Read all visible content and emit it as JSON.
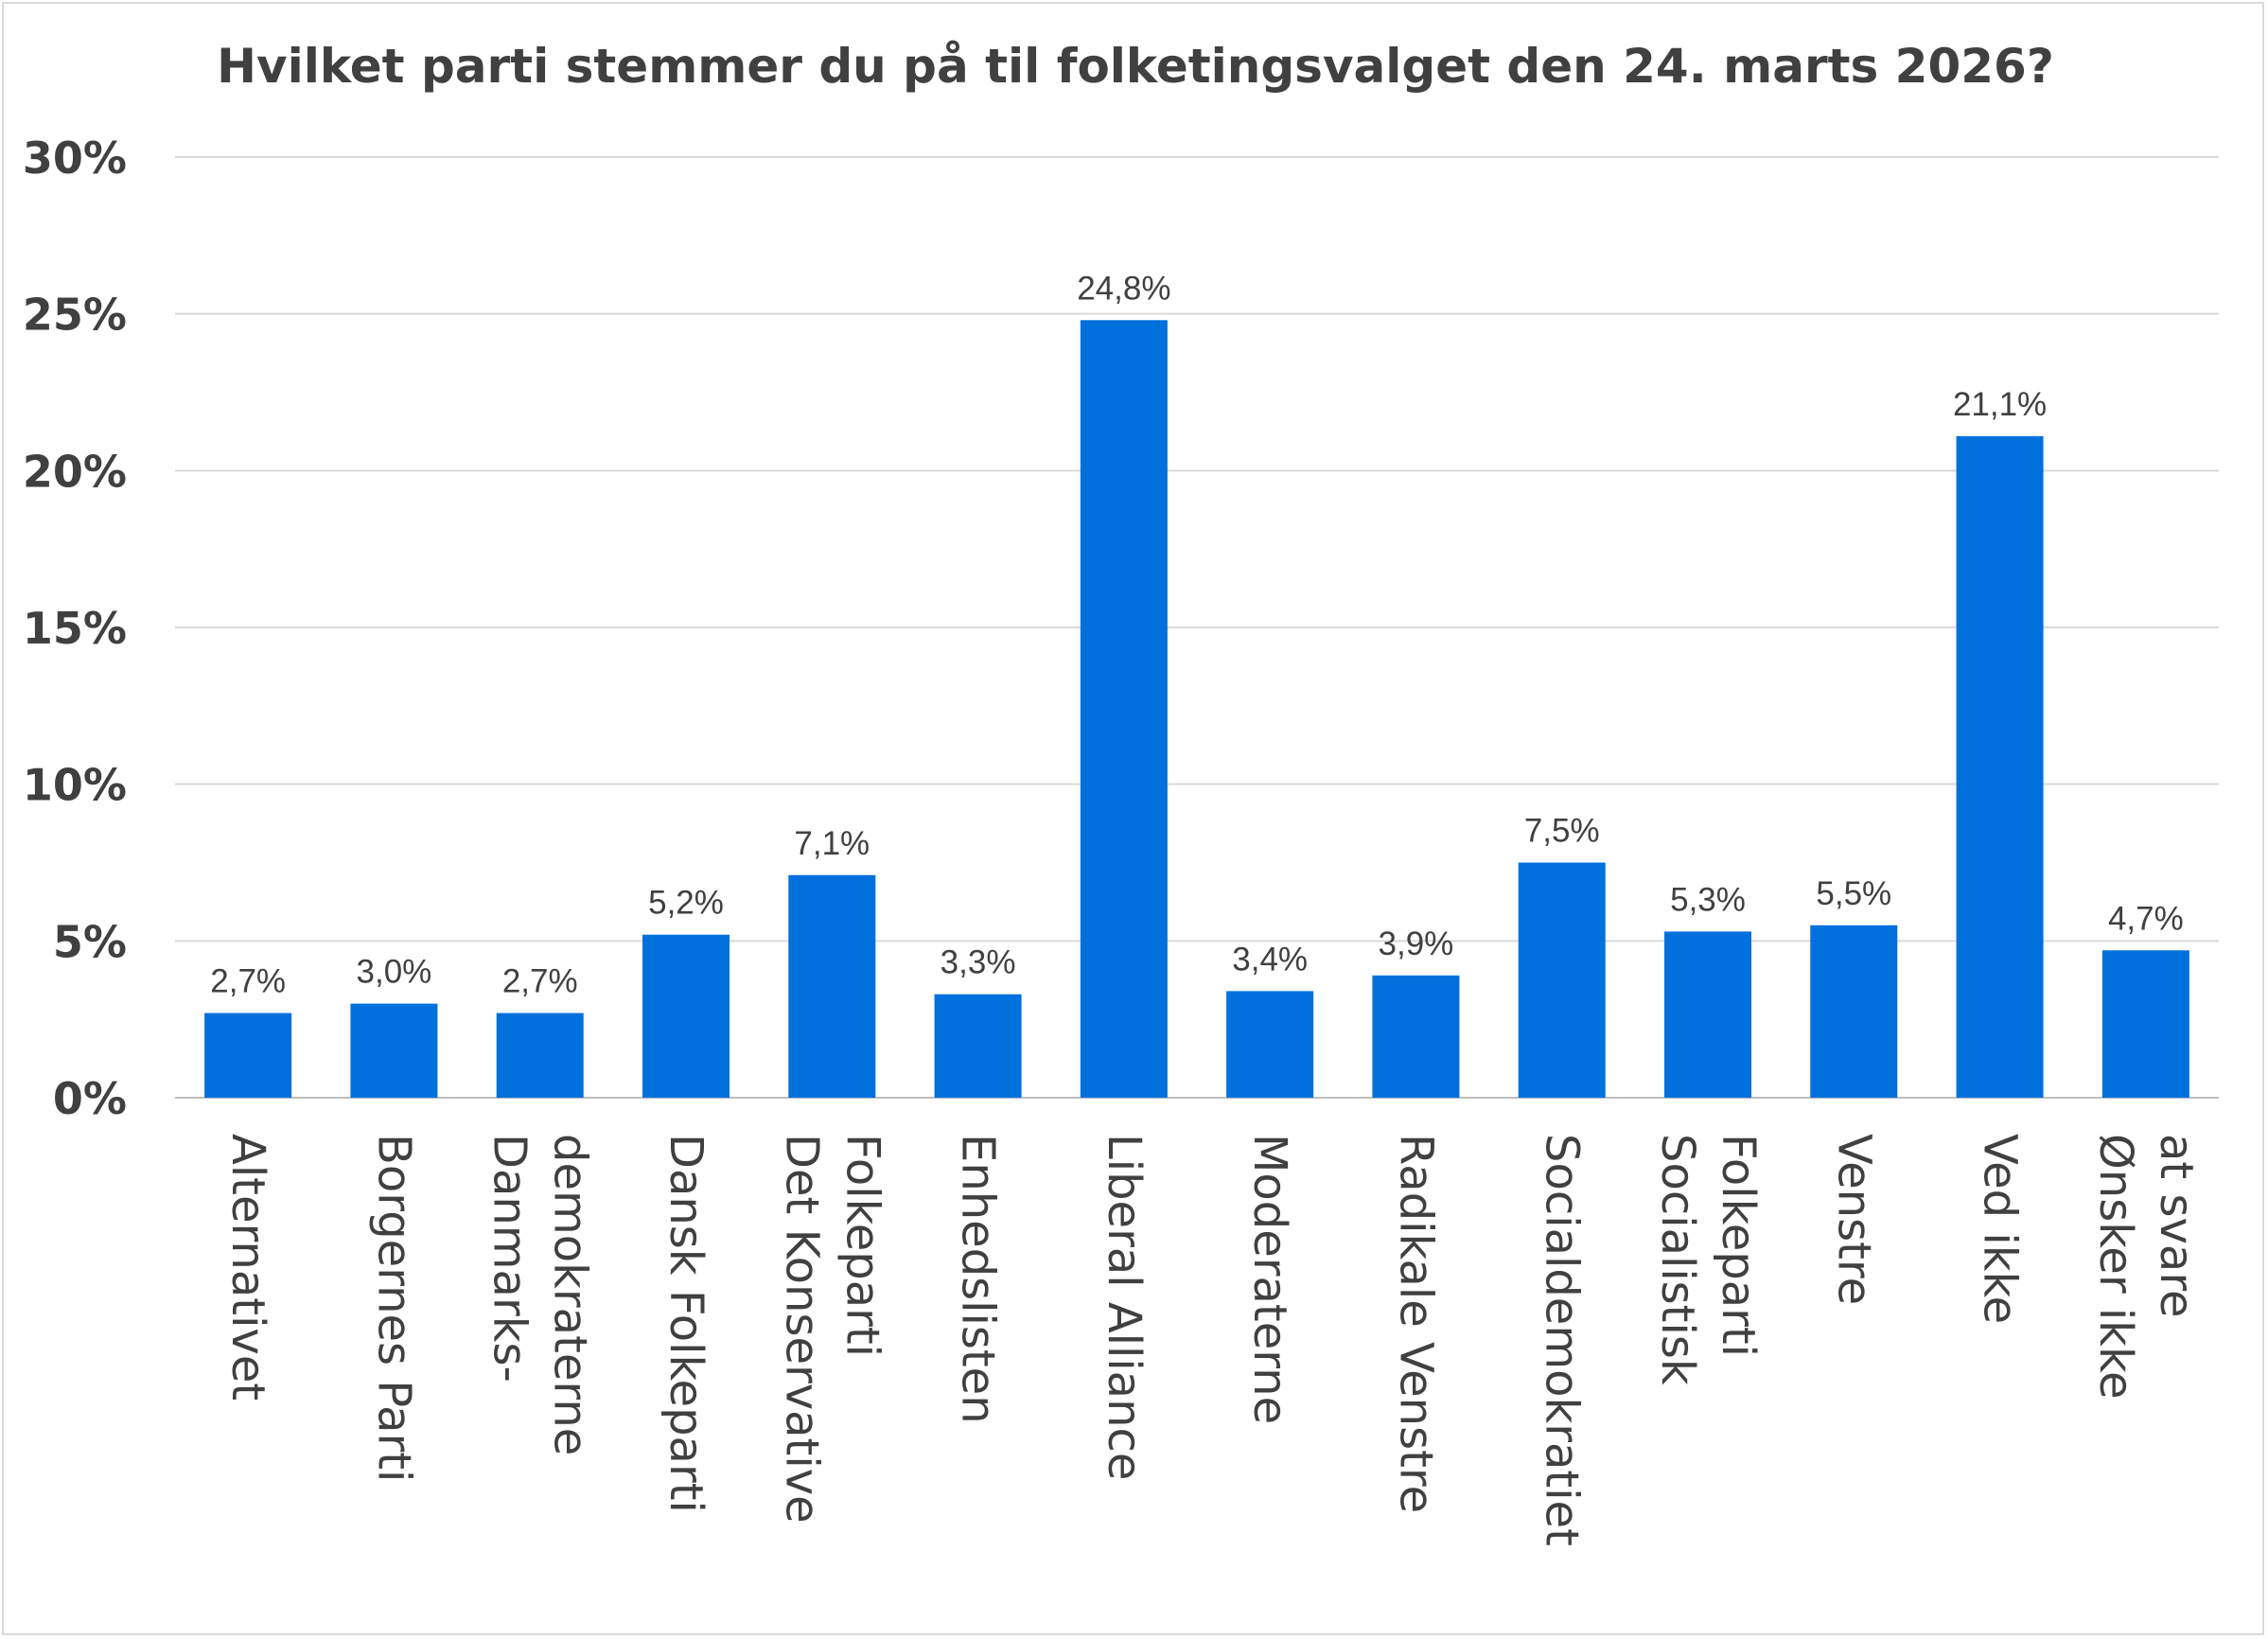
{
  "chart_data": {
    "type": "bar",
    "title": "Hvilket parti stemmer du på til folketingsvalget den 24. marts 2026?",
    "xlabel": "",
    "ylabel": "",
    "ylim": [
      0,
      30
    ],
    "yticks": [
      "0%",
      "5%",
      "10%",
      "15%",
      "20%",
      "25%",
      "30%"
    ],
    "grid": true,
    "bar_color": "#0070DD",
    "categories": [
      [
        "Alternativet"
      ],
      [
        "Borgernes Parti"
      ],
      [
        "Danmarks-",
        "demokraterne"
      ],
      [
        "Dansk Folkeparti"
      ],
      [
        "Det Konservative",
        "Folkeparti"
      ],
      [
        "Enhedslisten"
      ],
      [
        "Liberal Alliance"
      ],
      [
        "Moderaterne"
      ],
      [
        "Radikale Venstre"
      ],
      [
        "Socialdemokratiet"
      ],
      [
        "Socialistisk",
        "Folkeparti"
      ],
      [
        "Venstre"
      ],
      [
        "Ved ikke"
      ],
      [
        "Ønsker ikke",
        "at svare"
      ]
    ],
    "values": [
      2.7,
      3.0,
      2.7,
      5.2,
      7.1,
      3.3,
      24.8,
      3.4,
      3.9,
      7.5,
      5.3,
      5.5,
      21.1,
      4.7
    ],
    "data_labels": [
      "2,7%",
      "3,0%",
      "2,7%",
      "5,2%",
      "7,1%",
      "3,3%",
      "24,8%",
      "3,4%",
      "3,9%",
      "7,5%",
      "5,3%",
      "5,5%",
      "21,1%",
      "4,7%"
    ]
  }
}
